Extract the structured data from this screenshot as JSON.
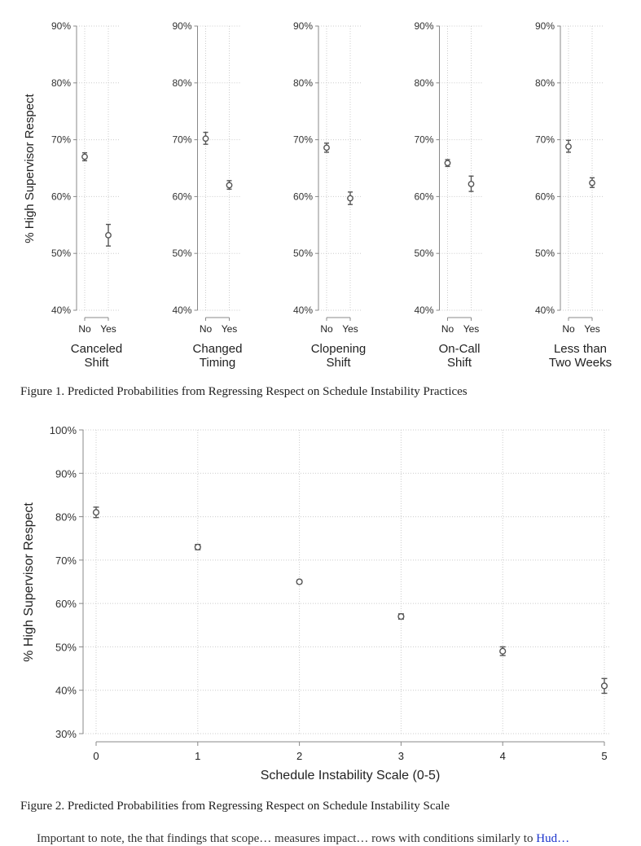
{
  "figure1": {
    "caption": "Figure 1. Predicted Probabilities from Regressing Respect on Schedule Instability Practices",
    "ylabel": "% High Supervisor Respect"
  },
  "figure2": {
    "caption": "Figure 2. Predicted Probabilities from Regressing Respect on Schedule Instability Scale"
  },
  "body_fragment": {
    "text": "Important to note, the that findings that scope… measures impact… rows with conditions similarly to ",
    "link": "Hud…"
  },
  "chart_data": [
    {
      "type": "scatter",
      "subtype": "point-with-error-bars",
      "ylabel": "% High Supervisor Respect",
      "ylim": [
        40,
        90
      ],
      "yticks": [
        40,
        50,
        60,
        70,
        80,
        90
      ],
      "ytick_labels": [
        "40%",
        "50%",
        "60%",
        "70%",
        "80%",
        "90%"
      ],
      "grid": true,
      "panels": [
        {
          "title": [
            "Canceled",
            "Shift"
          ],
          "categories": [
            "No",
            "Yes"
          ],
          "values": [
            67.0,
            53.2
          ],
          "ci_low": [
            66.3,
            51.3
          ],
          "ci_high": [
            67.7,
            55.1
          ]
        },
        {
          "title": [
            "Changed",
            "Timing"
          ],
          "categories": [
            "No",
            "Yes"
          ],
          "values": [
            70.2,
            62.0
          ],
          "ci_low": [
            69.2,
            61.3
          ],
          "ci_high": [
            71.3,
            62.8
          ]
        },
        {
          "title": [
            "Clopening",
            "Shift"
          ],
          "categories": [
            "No",
            "Yes"
          ],
          "values": [
            68.6,
            59.7
          ],
          "ci_low": [
            67.8,
            58.6
          ],
          "ci_high": [
            69.4,
            60.8
          ]
        },
        {
          "title": [
            "On-Call",
            "Shift"
          ],
          "categories": [
            "No",
            "Yes"
          ],
          "values": [
            65.9,
            62.2
          ],
          "ci_low": [
            65.3,
            60.9
          ],
          "ci_high": [
            66.5,
            63.6
          ]
        },
        {
          "title": [
            "Less than",
            "Two Weeks"
          ],
          "categories": [
            "No",
            "Yes"
          ],
          "values": [
            68.8,
            62.4
          ],
          "ci_low": [
            67.8,
            61.6
          ],
          "ci_high": [
            69.9,
            63.3
          ]
        }
      ]
    },
    {
      "type": "scatter",
      "subtype": "point-with-error-bars",
      "xlabel": "Schedule Instability Scale (0-5)",
      "ylabel": "% High Supervisor Respect",
      "x": [
        0,
        1,
        2,
        3,
        4,
        5
      ],
      "xticks": [
        0,
        1,
        2,
        3,
        4,
        5
      ],
      "xtick_labels": [
        "0",
        "1",
        "2",
        "3",
        "4",
        "5"
      ],
      "values": [
        81.0,
        73.0,
        65.0,
        57.0,
        49.0,
        41.0
      ],
      "ci_low": [
        79.8,
        72.4,
        64.6,
        56.4,
        48.0,
        39.3
      ],
      "ci_high": [
        82.2,
        73.6,
        65.4,
        57.6,
        50.0,
        42.7
      ],
      "ylim": [
        30,
        100
      ],
      "yticks": [
        30,
        40,
        50,
        60,
        70,
        80,
        90,
        100
      ],
      "ytick_labels": [
        "30%",
        "40%",
        "50%",
        "60%",
        "70%",
        "80%",
        "90%",
        "100%"
      ],
      "xlim": [
        0,
        5
      ],
      "grid": true
    }
  ]
}
